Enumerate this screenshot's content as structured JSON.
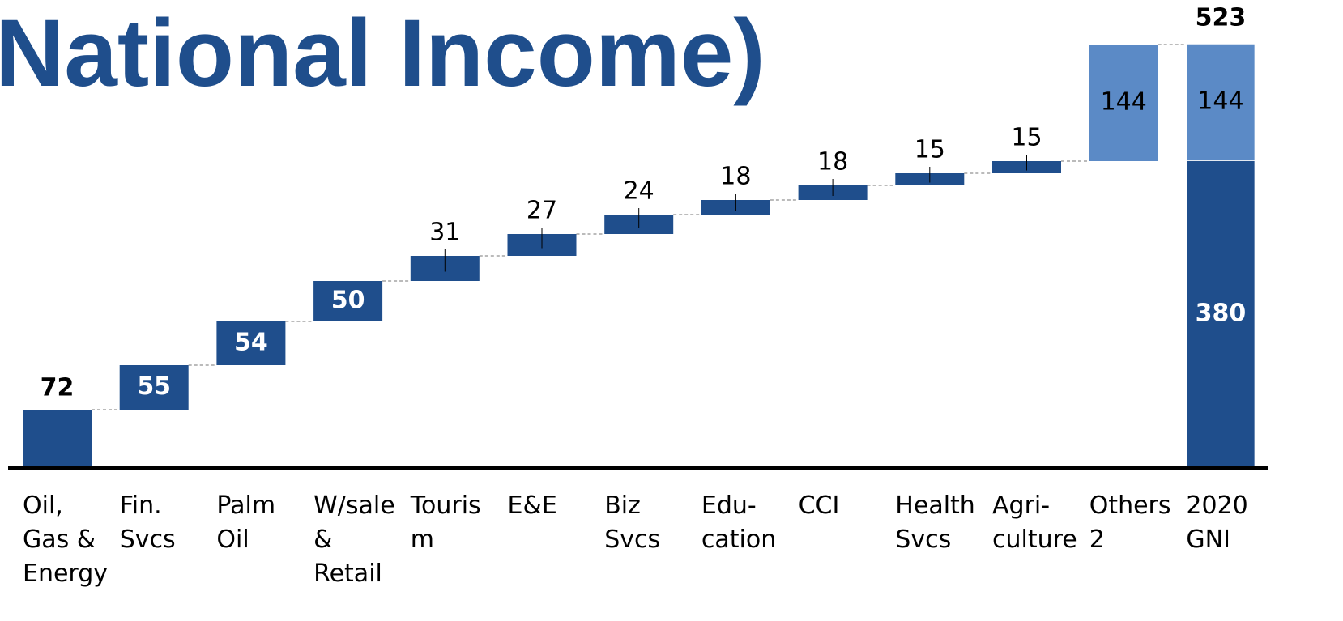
{
  "chart_data": {
    "type": "waterfall",
    "title": "National Income)",
    "categories": [
      "Oil, Gas & Energy",
      "Fin. Svcs",
      "Palm Oil",
      "W/sale & Retail",
      "Tourism",
      "E&E",
      "Biz Svcs",
      "Edu-cation",
      "CCI",
      "Health Svcs",
      "Agri-culture",
      "Others 2",
      "2020 GNI"
    ],
    "values": [
      72,
      55,
      54,
      50,
      31,
      27,
      24,
      18,
      18,
      15,
      15,
      144,
      null
    ],
    "colors": [
      "#1f4e8c",
      "#1f4e8c",
      "#1f4e8c",
      "#1f4e8c",
      "#1f4e8c",
      "#1f4e8c",
      "#1f4e8c",
      "#1f4e8c",
      "#1f4e8c",
      "#1f4e8c",
      "#1f4e8c",
      "#5b8ac6",
      null
    ],
    "total": {
      "value": 523,
      "segments": [
        380,
        144
      ],
      "segment_colors": [
        "#1f4e8c",
        "#5b8ac6"
      ]
    },
    "ylim": [
      0,
      530
    ]
  }
}
